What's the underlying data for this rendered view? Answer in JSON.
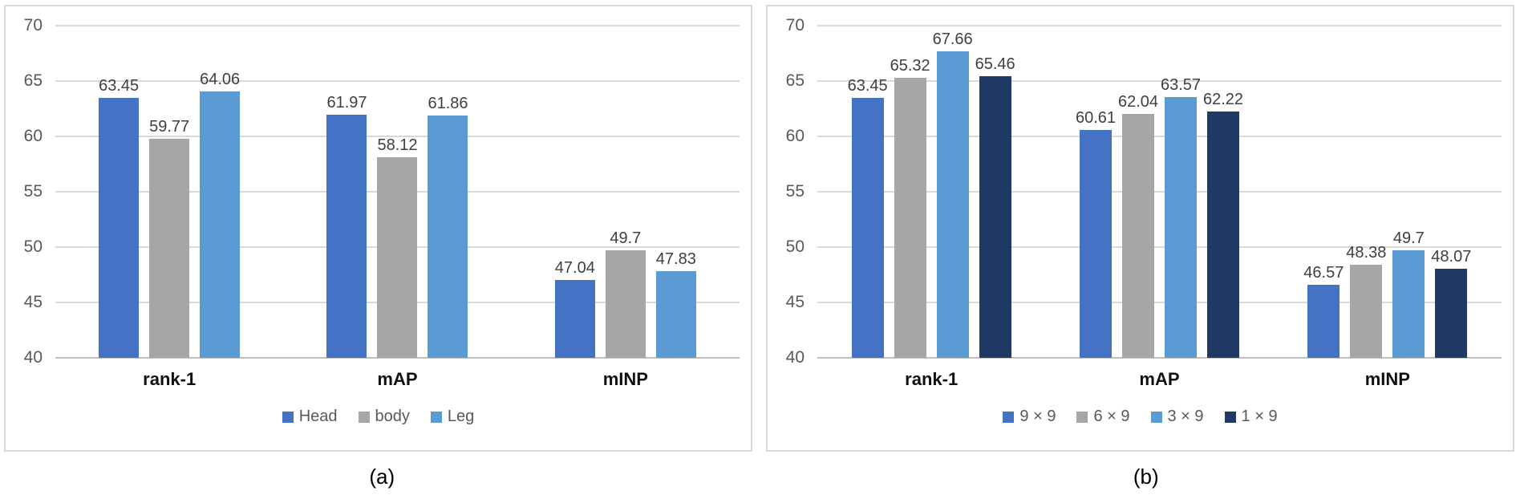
{
  "captions": {
    "a": "(a)",
    "b": "(b)"
  },
  "colors": {
    "blue": "#4472C4",
    "gray": "#A6A6A6",
    "light_blue": "#5B9BD5",
    "navy": "#1F3864",
    "gridline": "#D9D9D9",
    "axis_line": "#BFBFBF",
    "axis_text": "#595959",
    "data_label": "#404040",
    "category_text": "#111111",
    "panel_border": "#D8D8D8"
  },
  "chart_data": [
    {
      "id": "a",
      "type": "bar",
      "title": "",
      "xlabel": "",
      "ylabel": "",
      "categories": [
        "rank-1",
        "mAP",
        "mINP"
      ],
      "series": [
        {
          "name": "Head",
          "color_key": "blue",
          "values": [
            63.45,
            61.97,
            47.04
          ]
        },
        {
          "name": "body",
          "color_key": "gray",
          "values": [
            59.77,
            58.12,
            49.7
          ]
        },
        {
          "name": "Leg",
          "color_key": "light_blue",
          "values": [
            64.06,
            61.86,
            47.83
          ]
        }
      ],
      "ylim": [
        40,
        70
      ],
      "yticks": [
        40,
        45,
        50,
        55,
        60,
        65,
        70
      ],
      "grid": true,
      "data_labels": true,
      "legend_position": "bottom"
    },
    {
      "id": "b",
      "type": "bar",
      "title": "",
      "xlabel": "",
      "ylabel": "",
      "categories": [
        "rank-1",
        "mAP",
        "mINP"
      ],
      "series": [
        {
          "name": "9 × 9",
          "color_key": "blue",
          "values": [
            63.45,
            60.61,
            46.57
          ]
        },
        {
          "name": "6 × 9",
          "color_key": "gray",
          "values": [
            65.32,
            62.04,
            48.38
          ]
        },
        {
          "name": "3 × 9",
          "color_key": "light_blue",
          "values": [
            67.66,
            63.57,
            49.7
          ]
        },
        {
          "name": "1 × 9",
          "color_key": "navy",
          "values": [
            65.46,
            62.22,
            48.07
          ]
        }
      ],
      "ylim": [
        40,
        70
      ],
      "yticks": [
        40,
        45,
        50,
        55,
        60,
        65,
        70
      ],
      "grid": true,
      "data_labels": true,
      "legend_position": "bottom"
    }
  ]
}
